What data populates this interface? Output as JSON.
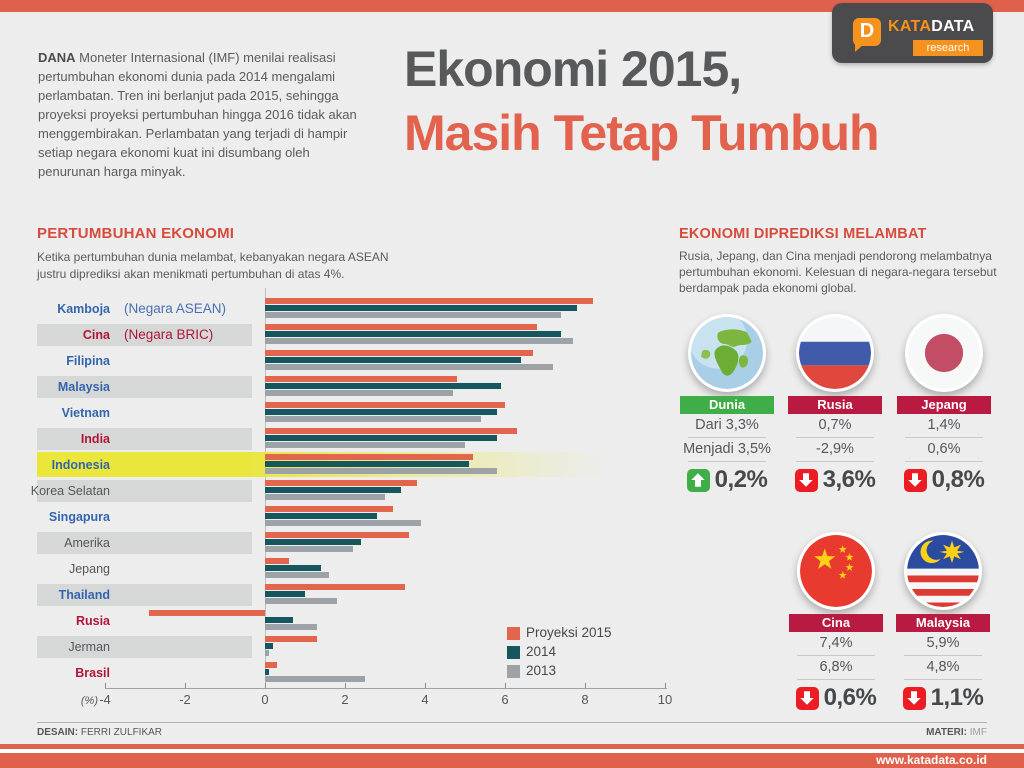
{
  "header": {
    "intro_lead": "DANA",
    "intro_rest": " Moneter Internasional (IMF) menilai realisasi pertumbuhan ekonomi dunia pada 2014 mengalami perlambatan. Tren ini berlanjut pada 2015, sehingga proyeksi proyeksi pertumbuhan hingga 2016 tidak akan menggembirakan. Perlambatan yang terjadi di hampir setiap negara ekonomi kuat ini disumbang oleh penurunan harga minyak.",
    "title_line1": "Ekonomi 2015,",
    "title_line2": "Masih Tetap Tumbuh",
    "logo": {
      "d": "D",
      "kata": "KATA",
      "data": "DATA",
      "research": "research"
    }
  },
  "left_section": {
    "title": "PERTUMBUHAN EKONOMI",
    "subtitle": "Ketika pertumbuhan dunia melambat, kebanyakan negara ASEAN justru diprediksi akan menikmati pertumbuhan di atas 4%."
  },
  "chart_data": {
    "type": "bar",
    "orientation": "horizontal",
    "unit": "%",
    "xlabel": "(%)",
    "ticks": [
      -4,
      -2,
      0,
      2,
      4,
      6,
      8,
      10
    ],
    "xlim": [
      -4.2,
      10
    ],
    "highlight": "Indonesia",
    "categories": [
      {
        "label": "Kamboja",
        "note": "(Negara ASEAN)",
        "group": "asean",
        "band": "none"
      },
      {
        "label": "Cina",
        "note": "(Negara BRIC)",
        "group": "bric",
        "band": "gray"
      },
      {
        "label": "Filipina",
        "note": "",
        "group": "asean",
        "band": "none"
      },
      {
        "label": "Malaysia",
        "note": "",
        "group": "asean",
        "band": "gray"
      },
      {
        "label": "Vietnam",
        "note": "",
        "group": "asean",
        "band": "none"
      },
      {
        "label": "India",
        "note": "",
        "group": "bric",
        "band": "gray"
      },
      {
        "label": "Indonesia",
        "note": "",
        "group": "asean",
        "band": "yellow"
      },
      {
        "label": "Korea Selatan",
        "note": "",
        "group": "neutral",
        "band": "gray"
      },
      {
        "label": "Singapura",
        "note": "",
        "group": "asean",
        "band": "none"
      },
      {
        "label": "Amerika",
        "note": "",
        "group": "neutral",
        "band": "gray"
      },
      {
        "label": "Jepang",
        "note": "",
        "group": "neutral",
        "band": "none"
      },
      {
        "label": "Thailand",
        "note": "",
        "group": "asean",
        "band": "gray"
      },
      {
        "label": "Rusia",
        "note": "",
        "group": "bric",
        "band": "none"
      },
      {
        "label": "Jerman",
        "note": "",
        "group": "neutral",
        "band": "gray"
      },
      {
        "label": "Brasil",
        "note": "",
        "group": "bric",
        "band": "none"
      }
    ],
    "series": [
      {
        "name": "Proyeksi 2015",
        "color": "#E2654E",
        "values": [
          8.2,
          6.8,
          6.7,
          4.8,
          6.0,
          6.3,
          5.2,
          3.8,
          3.2,
          3.6,
          0.6,
          3.5,
          -2.9,
          1.3,
          0.3
        ]
      },
      {
        "name": "2014",
        "color": "#15565F",
        "values": [
          7.8,
          7.4,
          6.4,
          5.9,
          5.8,
          5.8,
          5.1,
          3.4,
          2.8,
          2.4,
          1.4,
          1.0,
          0.7,
          0.2,
          0.1
        ]
      },
      {
        "name": "2013",
        "color": "#9DA2A6",
        "values": [
          7.4,
          7.7,
          7.2,
          4.7,
          5.4,
          5.0,
          5.8,
          3.0,
          3.9,
          2.2,
          1.6,
          1.8,
          1.3,
          0.1,
          2.5
        ]
      }
    ]
  },
  "right_section": {
    "title": "EKONOMI DIPREDIKSI  MELAMBAT",
    "subtitle": "Rusia, Jepang, dan Cina menjadi pendorong melambatnya pertumbuhan ekonomi. Kelesuan di negara-negara tersebut berdampak pada ekonomi global.",
    "cards": [
      {
        "name": "Dunia",
        "flag": "globe",
        "band_color": "#3FAE49",
        "value1": "Dari 3,3%",
        "value2": "Menjadi 3,5%",
        "change": "0,2%",
        "direction": "up"
      },
      {
        "name": "Rusia",
        "flag": "russia-flag",
        "band_color": "#B81A41",
        "value1": "0,7%",
        "value2": "-2,9%",
        "change": "3,6%",
        "direction": "down"
      },
      {
        "name": "Jepang",
        "flag": "japan-flag",
        "band_color": "#B81A41",
        "value1": "1,4%",
        "value2": "0,6%",
        "change": "0,8%",
        "direction": "down"
      },
      {
        "name": "Cina",
        "flag": "china-flag",
        "band_color": "#B81A41",
        "value1": "7,4%",
        "value2": "6,8%",
        "change": "0,6%",
        "direction": "down"
      },
      {
        "name": "Malaysia",
        "flag": "malaysia-flag",
        "band_color": "#B81A41",
        "value1": "5,9%",
        "value2": "4,8%",
        "change": "1,1%",
        "direction": "down"
      }
    ]
  },
  "footer": {
    "design_label": "DESAIN:",
    "design_value": " FERRI ZULFIKAR",
    "materi_label": "MATERI:",
    "materi_value": " IMF",
    "website": "www.katadata.co.id"
  },
  "colors": {
    "accent_salmon": "#E0614B",
    "accent_teal": "#15565F",
    "accent_gray": "#9DA2A6",
    "crimson_band": "#B81A41",
    "green_band": "#3FAE49",
    "arrow_red": "#EC1C24",
    "highlight_yellow": "#EAE63B"
  }
}
